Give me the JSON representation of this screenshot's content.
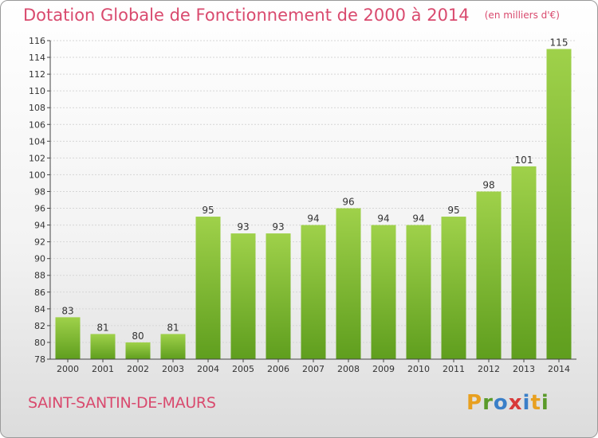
{
  "chart_data": {
    "type": "bar",
    "title": "Dotation Globale de Fonctionnement de 2000 à 2014",
    "unit_note": "(en milliers d'€)",
    "categories": [
      "2000",
      "2001",
      "2002",
      "2003",
      "2004",
      "2005",
      "2006",
      "2007",
      "2008",
      "2009",
      "2010",
      "2011",
      "2012",
      "2013",
      "2014"
    ],
    "values": [
      83,
      81,
      80,
      81,
      95,
      93,
      93,
      94,
      96,
      94,
      94,
      95,
      98,
      101,
      115
    ],
    "ylim": [
      78,
      116
    ],
    "yticks": [
      78,
      80,
      82,
      84,
      86,
      88,
      90,
      92,
      94,
      96,
      98,
      100,
      102,
      104,
      106,
      108,
      110,
      112,
      114,
      116
    ],
    "grid": true,
    "bar_color": "#7db83a"
  },
  "footer": {
    "commune": "SAINT-SANTIN-DE-MAURS",
    "logo": "Proxiti"
  }
}
